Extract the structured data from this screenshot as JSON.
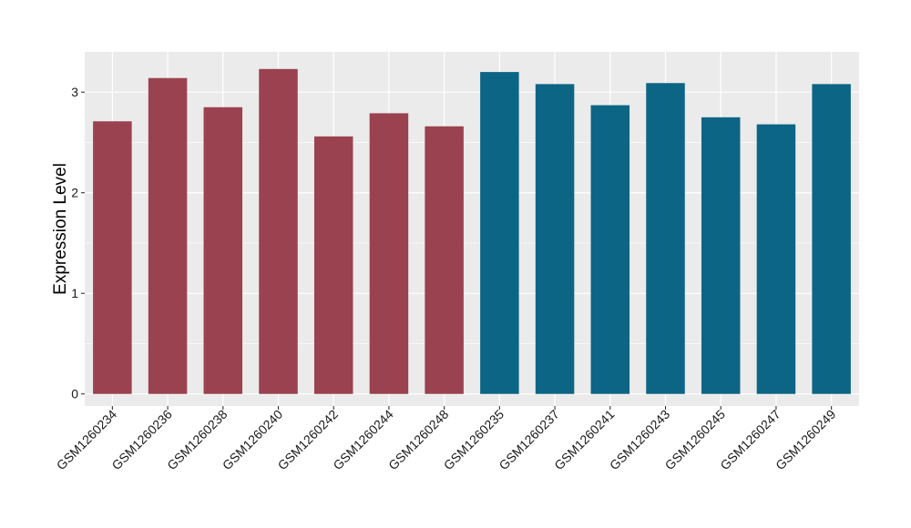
{
  "chart_data": {
    "type": "bar",
    "title": "",
    "xlabel": "",
    "ylabel": "Expression Level",
    "ylim": [
      -0.12,
      3.4
    ],
    "yticks": [
      0,
      1,
      2,
      3
    ],
    "grid": true,
    "categories": [
      "GSM1260234",
      "GSM1260236",
      "GSM1260238",
      "GSM1260240",
      "GSM1260242",
      "GSM1260244",
      "GSM1260248",
      "GSM1260235",
      "GSM1260237",
      "GSM1260241",
      "GSM1260243",
      "GSM1260245",
      "GSM1260247",
      "GSM1260249"
    ],
    "values": [
      2.71,
      3.14,
      2.85,
      3.23,
      2.56,
      2.79,
      2.66,
      3.2,
      3.08,
      2.87,
      3.09,
      2.75,
      2.68,
      3.08
    ],
    "bar_colors": [
      "#9a4250",
      "#9a4250",
      "#9a4250",
      "#9a4250",
      "#9a4250",
      "#9a4250",
      "#9a4250",
      "#0d6585",
      "#0d6585",
      "#0d6585",
      "#0d6585",
      "#0d6585",
      "#0d6585",
      "#0d6585"
    ],
    "panel_background": "#ebebeb",
    "gridline_color": "#ffffff"
  }
}
